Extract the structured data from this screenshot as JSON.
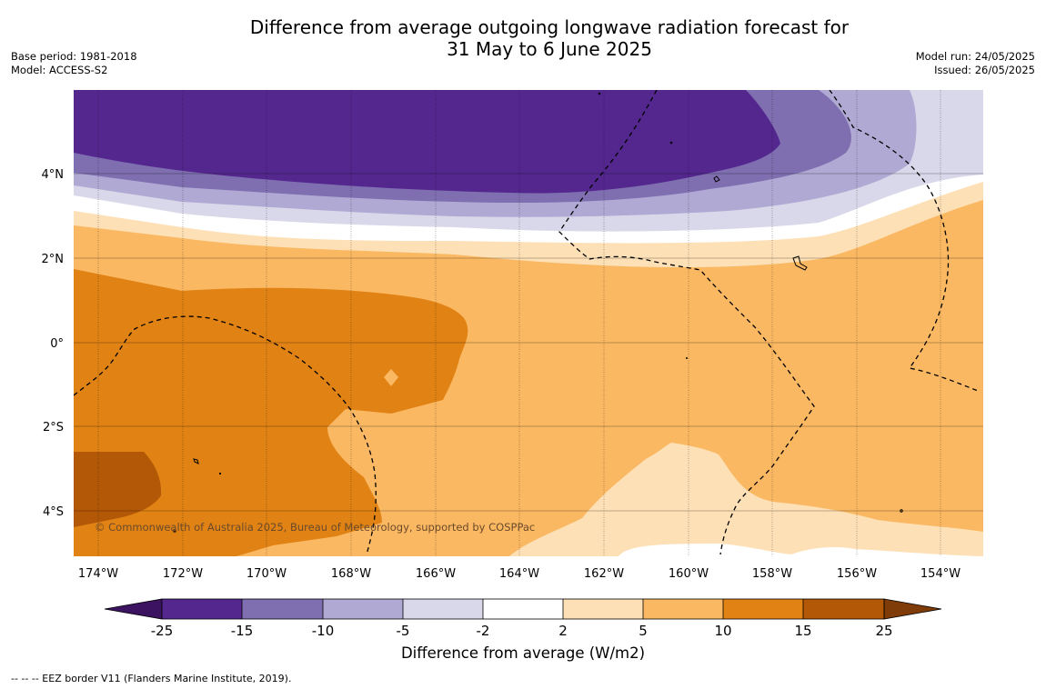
{
  "header": {
    "title_line1": "Difference from average outgoing longwave radiation forecast for",
    "title_line2": "31 May to 6 June 2025",
    "base_period": "Base period: 1981-2018",
    "model": "Model: ACCESS-S2",
    "model_run": "Model run: 24/05/2025",
    "issued": "Issued: 26/05/2025"
  },
  "map": {
    "lat_labels": [
      "4°N",
      "2°N",
      "0°",
      "2°S",
      "4°S"
    ],
    "lon_labels": [
      "174°W",
      "172°W",
      "170°W",
      "168°W",
      "166°W",
      "164°W",
      "162°W",
      "160°W",
      "158°W",
      "156°W",
      "154°W"
    ],
    "copyright": "© Commonwealth of Australia 2025, Bureau of Meteorology, supported by COSPPac"
  },
  "colorbar": {
    "title": "Difference from average (W/m2)",
    "tick_labels": [
      "-25",
      "-15",
      "-10",
      "-5",
      "-2",
      "2",
      "5",
      "10",
      "15",
      "25"
    ],
    "colors": {
      "below_min": "#3b1360",
      "n25_n15": "#54278f",
      "n15_n10": "#7f6eb0",
      "n10_n5": "#b0a9d4",
      "n5_n2": "#d9d8ea",
      "n2_2": "#ffffff",
      "p2_5": "#fde0b6",
      "p5_10": "#fbb862",
      "p10_15": "#e08214",
      "p15_25": "#b35806",
      "above_max": "#7f3b08"
    }
  },
  "footer": {
    "eez_note": "--  --  -- EEZ border V11 (Flanders Marine Institute, 2019)."
  }
}
